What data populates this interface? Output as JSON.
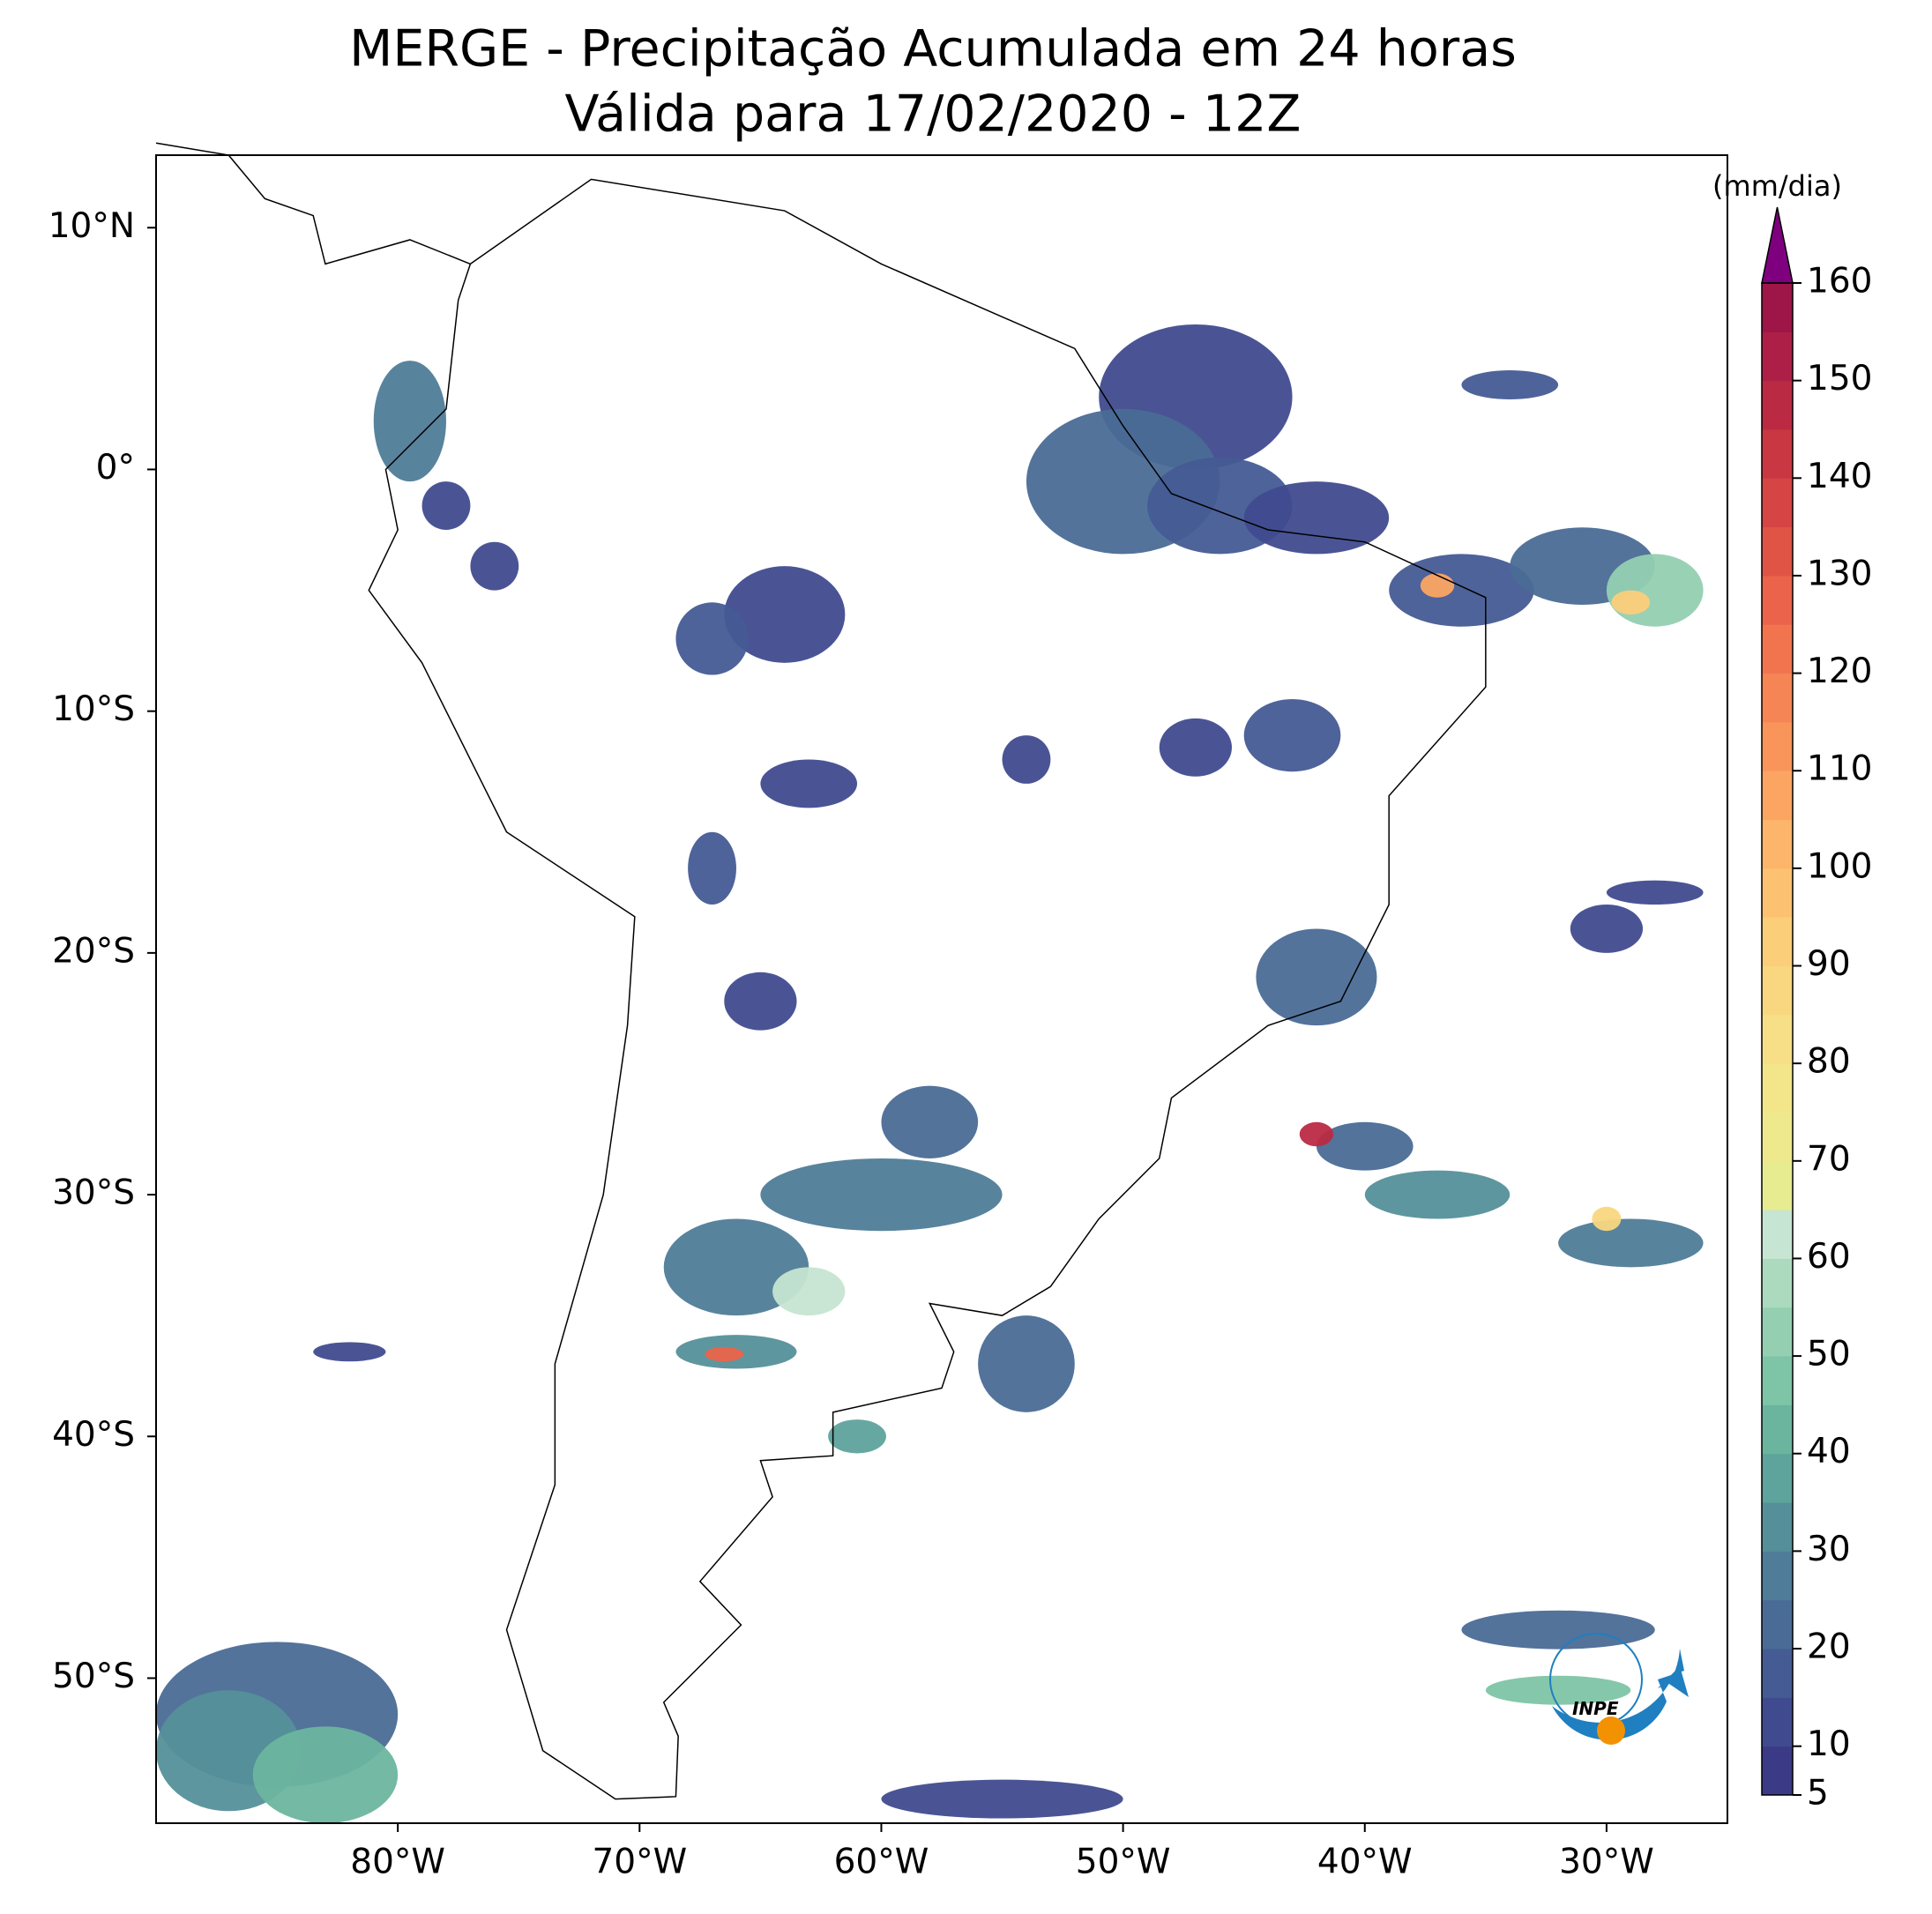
{
  "header": {
    "title": "MERGE - Precipitação Acumulada em 24 horas",
    "subtitle": "Válida para 17/02/2020 - 12Z"
  },
  "map": {
    "xlim": [
      -90,
      -25
    ],
    "ylim": [
      -56,
      13
    ],
    "xticks": [
      {
        "value": -80,
        "label": "80°W"
      },
      {
        "value": -70,
        "label": "70°W"
      },
      {
        "value": -60,
        "label": "60°W"
      },
      {
        "value": -50,
        "label": "50°W"
      },
      {
        "value": -40,
        "label": "40°W"
      },
      {
        "value": -30,
        "label": "30°W"
      }
    ],
    "yticks": [
      {
        "value": 10,
        "label": "10°N"
      },
      {
        "value": 0,
        "label": "0°"
      },
      {
        "value": -10,
        "label": "10°S"
      },
      {
        "value": -20,
        "label": "20°S"
      },
      {
        "value": -30,
        "label": "30°S"
      },
      {
        "value": -40,
        "label": "40°S"
      },
      {
        "value": -50,
        "label": "50°S"
      }
    ]
  },
  "colorbar": {
    "unit": "(mm/dia)",
    "lim": [
      5,
      160
    ],
    "ticks": [
      5,
      10,
      20,
      30,
      40,
      50,
      60,
      70,
      80,
      90,
      100,
      110,
      120,
      130,
      140,
      150,
      160
    ],
    "levels": [
      5,
      10,
      15,
      20,
      25,
      30,
      35,
      40,
      45,
      50,
      55,
      60,
      65,
      70,
      75,
      80,
      85,
      90,
      95,
      100,
      105,
      110,
      115,
      120,
      125,
      130,
      135,
      140,
      145,
      150,
      155,
      160
    ],
    "colors": [
      "#3b3a87",
      "#404b8f",
      "#455b93",
      "#4a6b96",
      "#4f7c98",
      "#55909a",
      "#5ea39c",
      "#6bb59f",
      "#7ec4a6",
      "#94cfb1",
      "#acdabf",
      "#c6e5d2",
      "#e6ec8f",
      "#eee98c",
      "#f3e58a",
      "#f6df87",
      "#f9d780",
      "#fbce7a",
      "#fcc272",
      "#fcb56a",
      "#fca563",
      "#f9955b",
      "#f68555",
      "#f1744f",
      "#ea634a",
      "#e05446",
      "#d54543",
      "#c93742",
      "#bb2a43",
      "#ad1f46",
      "#9e1547"
    ],
    "extend_color": "#7f007f"
  },
  "logo": {
    "text": "INPE"
  }
}
